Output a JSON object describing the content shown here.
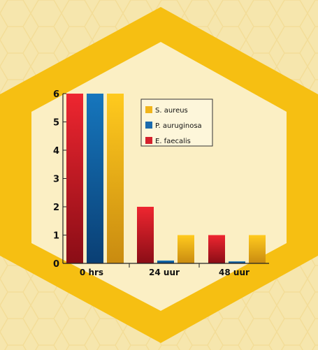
{
  "colors": {
    "background": "#f6e6ad",
    "honeycomb": "#f3dd9a",
    "hexagon_ring": "#f6bf12",
    "hexagon_inner": "#fbefc4"
  },
  "chart_data": {
    "type": "bar",
    "categories": [
      "0 hrs",
      "24 uur",
      "48 uur"
    ],
    "series": [
      {
        "name": "E. faecalis",
        "values": [
          6,
          2,
          1
        ],
        "color": "#d4202c"
      },
      {
        "name": "P. auruginosa",
        "values": [
          6,
          0.1,
          0.07
        ],
        "color": "#1a6aad"
      },
      {
        "name": "S. aureus",
        "values": [
          6,
          1,
          1
        ],
        "color": "#f1b51a"
      }
    ],
    "legend_order": [
      "S. aureus",
      "P. auruginosa",
      "E. faecalis"
    ],
    "yticks": [
      "0",
      "1",
      "2",
      "3",
      "4",
      "5",
      "6"
    ],
    "ylim": [
      0,
      6
    ],
    "title": "",
    "xlabel": "",
    "ylabel": "",
    "grid": false,
    "legend_position": "top-right"
  }
}
